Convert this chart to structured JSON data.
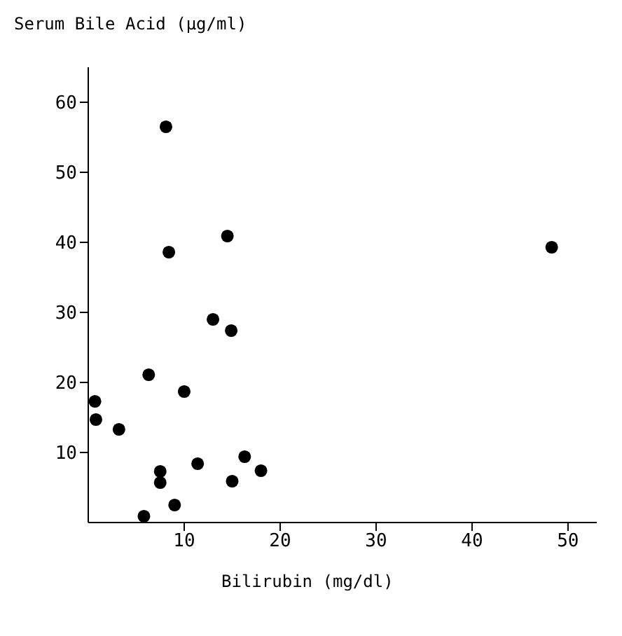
{
  "chart_data": {
    "type": "scatter",
    "xlabel": "Bilirubin (mg/dl)",
    "ylabel": "Serum Bile Acid (μg/ml)",
    "x": [
      8.1,
      14.5,
      8.4,
      13.0,
      14.9,
      6.3,
      10.0,
      0.7,
      0.8,
      3.2,
      11.4,
      16.3,
      18.0,
      7.5,
      7.5,
      15.0,
      9.0,
      5.8,
      48.3
    ],
    "series": [
      {
        "color": "#000000",
        "values": [
          56.5,
          40.9,
          38.6,
          29.0,
          27.4,
          21.1,
          18.7,
          17.3,
          14.7,
          13.3,
          8.4,
          9.4,
          7.4,
          7.3,
          5.7,
          5.9,
          2.5,
          0.9,
          39.3
        ]
      }
    ],
    "xlim": [
      0,
      53
    ],
    "ylim": [
      0,
      65
    ],
    "xticks": [
      10,
      20,
      30,
      40,
      50
    ],
    "yticks": [
      10,
      20,
      30,
      40,
      50,
      60
    ],
    "grid": false,
    "marker": "circle"
  }
}
